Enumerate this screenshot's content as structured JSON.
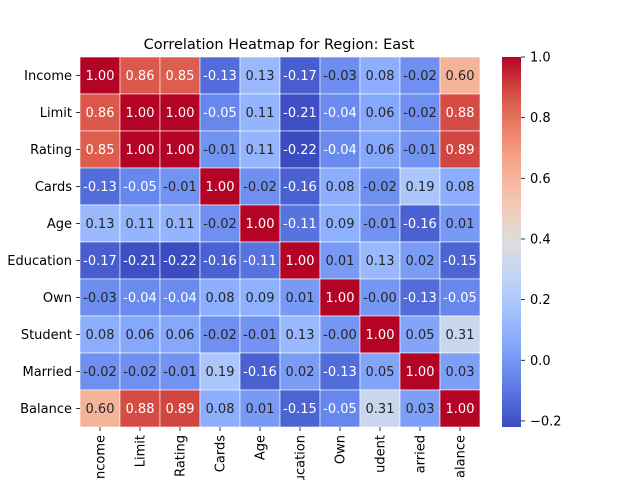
{
  "chart_data": {
    "type": "heatmap",
    "title": "Correlation Heatmap for Region: East",
    "variables": [
      "Income",
      "Limit",
      "Rating",
      "Cards",
      "Age",
      "Education",
      "Own",
      "Student",
      "Married",
      "Balance"
    ],
    "x_tick_labels": [
      "ncome",
      "Limit",
      "Rating",
      "Cards",
      "Age",
      "ucation",
      "Own",
      "udent",
      "arried",
      "alance"
    ],
    "values": [
      [
        1.0,
        0.86,
        0.85,
        -0.13,
        0.13,
        -0.17,
        -0.03,
        0.08,
        -0.02,
        0.6
      ],
      [
        0.86,
        1.0,
        1.0,
        -0.05,
        0.11,
        -0.21,
        -0.04,
        0.06,
        -0.02,
        0.88
      ],
      [
        0.85,
        1.0,
        1.0,
        -0.01,
        0.11,
        -0.22,
        -0.04,
        0.06,
        -0.01,
        0.89
      ],
      [
        -0.13,
        -0.05,
        -0.01,
        1.0,
        -0.02,
        -0.16,
        0.08,
        -0.02,
        0.19,
        0.08
      ],
      [
        0.13,
        0.11,
        0.11,
        -0.02,
        1.0,
        -0.11,
        0.09,
        -0.01,
        -0.16,
        0.01
      ],
      [
        -0.17,
        -0.21,
        -0.22,
        -0.16,
        -0.11,
        1.0,
        0.01,
        0.13,
        0.02,
        -0.15
      ],
      [
        -0.03,
        -0.04,
        -0.04,
        0.08,
        0.09,
        0.01,
        1.0,
        -0.0,
        -0.13,
        -0.05
      ],
      [
        0.08,
        0.06,
        0.06,
        -0.02,
        -0.01,
        0.13,
        -0.0,
        1.0,
        0.05,
        0.31
      ],
      [
        -0.02,
        -0.02,
        -0.01,
        0.19,
        -0.16,
        0.02,
        -0.13,
        0.05,
        1.0,
        0.03
      ],
      [
        0.6,
        0.88,
        0.89,
        0.08,
        0.01,
        -0.15,
        -0.05,
        0.31,
        0.03,
        1.0
      ]
    ],
    "colormap": "coolwarm",
    "vmin": -0.22,
    "vmax": 1.0,
    "colorbar_ticks": [
      -0.2,
      0.0,
      0.2,
      0.4,
      0.6,
      0.8,
      1.0
    ],
    "colorbar_tick_labels": [
      "−0.2",
      "0.0",
      "0.2",
      "0.4",
      "0.6",
      "0.8",
      "1.0"
    ],
    "grid": false,
    "legend": "right (colorbar)"
  }
}
